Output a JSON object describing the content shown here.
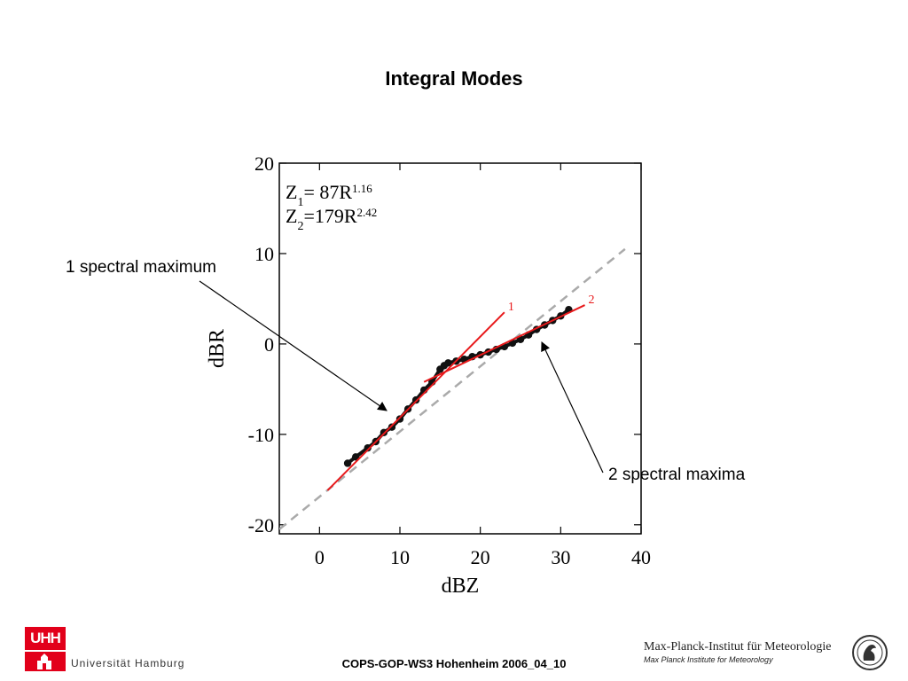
{
  "title": "Integral Modes",
  "callouts": {
    "left": "1 spectral maximum",
    "right": "2 spectral maxima"
  },
  "footer": {
    "university": "Universität Hamburg",
    "university_logo": "UHH",
    "center": "COPS-GOP-WS3 Hohenheim 2006_04_10",
    "institute": "Max-Planck-Institut für Meteorologie",
    "institute_sub": "Max Planck Institute for Meteorology"
  },
  "chart_data": {
    "type": "scatter",
    "xlabel": "dBZ",
    "ylabel": "dBR",
    "xlim": [
      -5,
      40
    ],
    "ylim": [
      -21,
      20
    ],
    "xticks": [
      0,
      10,
      20,
      30,
      40
    ],
    "yticks": [
      -20,
      -10,
      0,
      10,
      20
    ],
    "grid": false,
    "equations": [
      {
        "prefix": "Z",
        "sub": "1",
        "rel": "= 87R",
        "exp": "1.16"
      },
      {
        "prefix": "Z",
        "sub": "2",
        "rel": "=179R",
        "exp": "2.42"
      }
    ],
    "fit_lines": [
      {
        "name": "1",
        "color": "#e8191b",
        "x": [
          1,
          23
        ],
        "y": [
          -16.2,
          3.5
        ]
      },
      {
        "name": "2",
        "color": "#e8191b",
        "x": [
          13,
          33
        ],
        "y": [
          -4.2,
          4.3
        ]
      }
    ],
    "reference_line": {
      "color": "#aaaaaa",
      "dashed": true,
      "x": [
        -5,
        38
      ],
      "y": [
        -20.5,
        10.5
      ]
    },
    "series": [
      {
        "color": "#111111",
        "x": [
          3.5,
          4.5,
          6,
          7,
          8,
          9,
          10,
          11,
          12,
          13,
          14,
          15,
          15.5,
          16,
          17,
          18,
          19,
          20,
          21,
          22,
          23,
          24,
          25,
          26,
          27,
          28,
          29,
          30,
          31
        ],
        "y": [
          -13.2,
          -12.5,
          -11.5,
          -10.8,
          -9.8,
          -9.2,
          -8.3,
          -7.2,
          -6.2,
          -5.1,
          -4.2,
          -2.8,
          -2.4,
          -2.1,
          -1.9,
          -1.7,
          -1.4,
          -1.2,
          -0.9,
          -0.6,
          -0.3,
          0.1,
          0.5,
          1.0,
          1.6,
          2.1,
          2.6,
          3.1,
          3.8
        ]
      }
    ]
  }
}
